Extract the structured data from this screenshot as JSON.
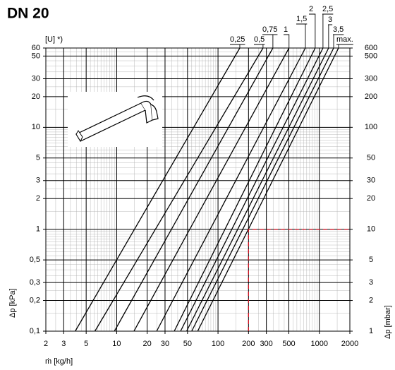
{
  "chart_data": {
    "type": "line",
    "title": "DN 20",
    "subtitle": "[U] *)",
    "x_label": "ṁ [kg/h]",
    "y_label": "Δp [kPa]",
    "y2_label": "Δp [mbar]",
    "log_x": true,
    "log_y": true,
    "grid": true,
    "xlim": [
      2,
      2000
    ],
    "ylim": [
      0.1,
      60
    ],
    "y2lim": [
      1,
      600
    ],
    "xticks": [
      2,
      3,
      5,
      10,
      20,
      30,
      50,
      100,
      200,
      300,
      500,
      1000,
      2000
    ],
    "yticks": [
      {
        "value": 0.1,
        "label": "0,1"
      },
      {
        "value": 0.2,
        "label": "0,2"
      },
      {
        "value": 0.3,
        "label": "0,3"
      },
      {
        "value": 0.5,
        "label": "0,5"
      },
      1,
      2,
      3,
      5,
      10,
      20,
      30,
      50,
      60
    ],
    "y2ticks": [
      1,
      2,
      3,
      5,
      10,
      20,
      30,
      50,
      100,
      200,
      300,
      500,
      600
    ],
    "series": [
      {
        "name": "0,25",
        "color": "#000000",
        "x": [
          3.9,
          164
        ],
        "values": [
          0.1,
          60
        ]
      },
      {
        "name": "0,5",
        "color": "#000000",
        "x": [
          6.1,
          278
        ],
        "values": [
          0.1,
          60
        ]
      },
      {
        "name": "0,75",
        "color": "#000000",
        "x": [
          9.5,
          348
        ],
        "values": [
          0.1,
          60
        ]
      },
      {
        "name": "1",
        "color": "#000000",
        "x": [
          14.8,
          502
        ],
        "values": [
          0.1,
          60
        ]
      },
      {
        "name": "1,5",
        "color": "#000000",
        "x": [
          24.8,
          728
        ],
        "values": [
          0.1,
          60
        ]
      },
      {
        "name": "2",
        "color": "#000000",
        "x": [
          37,
          910
        ],
        "values": [
          0.1,
          60
        ]
      },
      {
        "name": "2,5",
        "color": "#000000",
        "x": [
          42.7,
          1086
        ],
        "values": [
          0.1,
          60
        ]
      },
      {
        "name": "3",
        "color": "#000000",
        "x": [
          49,
          1234
        ],
        "values": [
          0.1,
          60
        ]
      },
      {
        "name": "3,5",
        "color": "#000000",
        "x": [
          55,
          1384
        ],
        "values": [
          0.1,
          60
        ]
      },
      {
        "name": "max.",
        "color": "#000000",
        "x": [
          63,
          1546
        ],
        "values": [
          0.1,
          60
        ]
      }
    ],
    "reference": {
      "x": 200,
      "y": 1,
      "color": "#d01020"
    }
  }
}
